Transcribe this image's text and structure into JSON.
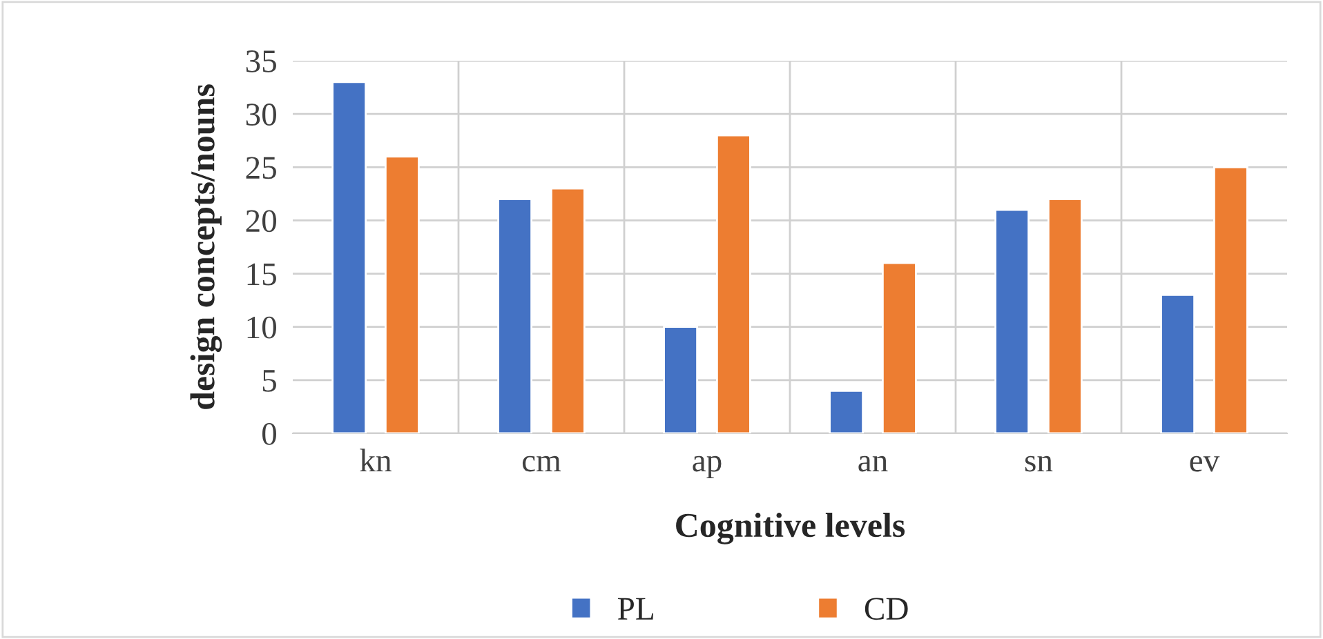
{
  "chart_data": {
    "type": "bar",
    "xlabel": "Cognitive levels",
    "ylabel": "design concepts/nouns",
    "categories": [
      "kn",
      "cm",
      "ap",
      "an",
      "sn",
      "ev"
    ],
    "series": [
      {
        "name": "PL",
        "color": "#4472c4",
        "values": [
          33,
          22,
          10,
          4,
          21,
          13
        ]
      },
      {
        "name": "CD",
        "color": "#ed7d31",
        "values": [
          26,
          23,
          28,
          16,
          22,
          25
        ]
      }
    ],
    "ylim": [
      0,
      35
    ],
    "yticks": [
      0,
      5,
      10,
      15,
      20,
      25,
      30,
      35
    ],
    "grid": true,
    "legend": "bottom"
  }
}
